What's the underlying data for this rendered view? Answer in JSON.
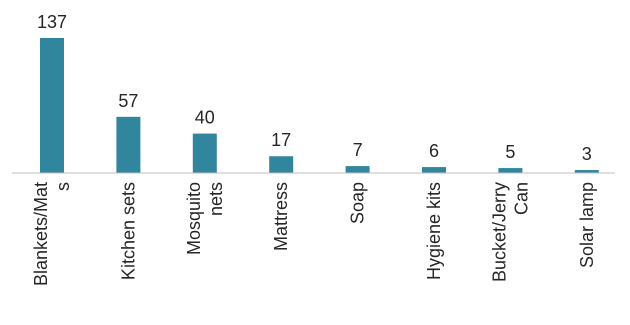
{
  "chart_data": {
    "type": "bar",
    "title": "",
    "xlabel": "",
    "ylabel": "",
    "categories": [
      [
        "Blankets/Mat",
        "s"
      ],
      [
        "Kitchen sets"
      ],
      [
        "Mosquito",
        "nets"
      ],
      [
        "Mattress"
      ],
      [
        "Soap"
      ],
      [
        "Hygiene kits"
      ],
      [
        "Bucket/Jerry",
        "Can"
      ],
      [
        "Solar lamp"
      ]
    ],
    "values": [
      137,
      57,
      40,
      17,
      7,
      6,
      5,
      3
    ],
    "ylim": [
      0,
      137
    ],
    "grid": false,
    "legend": "none",
    "data_labels": true,
    "bar_color": "#31859c",
    "axis_color": "#bfbfbf",
    "text_color": "#262626"
  }
}
